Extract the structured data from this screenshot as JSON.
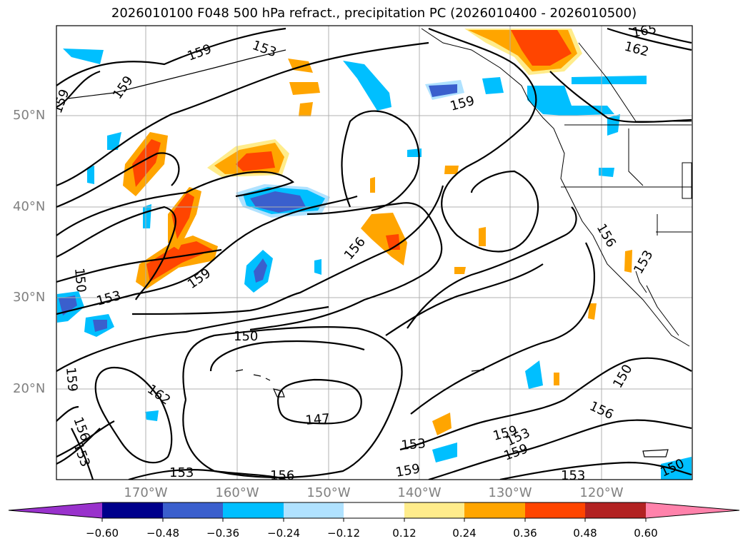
{
  "title": "2026010100 F048 500 hPa refract., precipitation PC (2026010400 - 2026010500)",
  "map": {
    "lat_labels": [
      "50°N",
      "40°N",
      "30°N",
      "20°N"
    ],
    "lon_labels": [
      "170°W",
      "160°W",
      "150°W",
      "140°W",
      "130°W",
      "120°W"
    ]
  },
  "contour_labels": [
    "165",
    "162",
    "159",
    "159",
    "159",
    "159",
    "159",
    "156",
    "156",
    "156",
    "153",
    "153",
    "153",
    "153",
    "150",
    "150",
    "150",
    "147",
    "159",
    "162",
    "156",
    "153",
    "156",
    "153",
    "153",
    "150",
    "159",
    "153",
    "159",
    "159",
    "156"
  ],
  "colorbar": {
    "ticks": [
      "−0.60",
      "−0.48",
      "−0.36",
      "−0.24",
      "−0.12",
      "0.12",
      "0.24",
      "0.36",
      "0.48",
      "0.60"
    ],
    "colors": [
      "#9932cc",
      "#00008b",
      "#3a5fcd",
      "#00bfff",
      "#b0e2ff",
      "#ffffff",
      "#ffec8b",
      "#ffa500",
      "#ff4500",
      "#b22222",
      "#ff82ab"
    ]
  }
}
